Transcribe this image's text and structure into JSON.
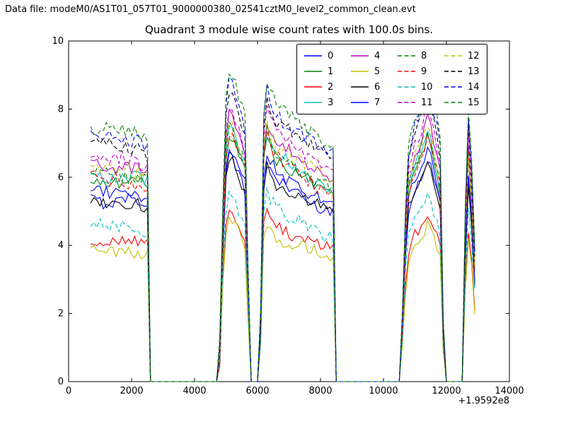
{
  "header": {
    "text": "Data file: modeM0/AS1T01_057T01_9000000380_02541cztM0_level2_common_clean.evt"
  },
  "chart_data": {
    "type": "line",
    "title": "Quadrant 3 module wise count rates with 100.0s bins.",
    "xlabel": "",
    "ylabel": "",
    "x_offset_label": "+1.9592e8",
    "xlim": [
      0,
      14000
    ],
    "ylim": [
      0,
      10
    ],
    "xticks": [
      0,
      2000,
      4000,
      6000,
      8000,
      10000,
      12000,
      14000
    ],
    "yticks": [
      0,
      2,
      4,
      6,
      8,
      10
    ],
    "bin_seconds": 100.0,
    "legend": {
      "position": "upper center",
      "columns": 4
    },
    "x_start": 700,
    "x_end": 12900,
    "x_step": 100,
    "noise_amp_solid": 0.18,
    "noise_amp_dashed": 0.22,
    "profile": {
      "x": [
        700,
        1200,
        1700,
        2200,
        2520,
        2600,
        4780,
        4860,
        5000,
        5120,
        5250,
        5450,
        5650,
        5740,
        6060,
        6130,
        6220,
        6350,
        6600,
        7000,
        7400,
        7800,
        8150,
        8400,
        8470,
        10560,
        10640,
        10800,
        11000,
        11200,
        11420,
        11600,
        11800,
        11930,
        12540,
        12600,
        12660,
        12700,
        12800,
        12900
      ],
      "factor": [
        1.0,
        0.99,
        1.0,
        0.99,
        0.96,
        0,
        0,
        0.55,
        1.12,
        1.25,
        1.2,
        1.1,
        1.02,
        0,
        0,
        0.5,
        1.25,
        1.18,
        1.1,
        1.06,
        1.02,
        0.98,
        0.95,
        0.93,
        0,
        0,
        0.55,
        0.95,
        1.05,
        1.12,
        1.22,
        1.1,
        0.95,
        0,
        0,
        0.7,
        1.15,
        1.1,
        0.85,
        0.55
      ]
    },
    "series": [
      {
        "name": "0",
        "color": "#0000ff",
        "style": "solid",
        "baseline": 5.35
      },
      {
        "name": "1",
        "color": "#008000",
        "style": "solid",
        "baseline": 5.9
      },
      {
        "name": "2",
        "color": "#ff0000",
        "style": "solid",
        "baseline": 4.15
      },
      {
        "name": "3",
        "color": "#00bfbf",
        "style": "solid",
        "baseline": 6.05
      },
      {
        "name": "4",
        "color": "#bf00bf",
        "style": "solid",
        "baseline": 6.35
      },
      {
        "name": "5",
        "color": "#bfbf00",
        "style": "solid",
        "baseline": 3.85
      },
      {
        "name": "6",
        "color": "#000000",
        "style": "solid",
        "baseline": 5.3
      },
      {
        "name": "7",
        "color": "#0000ff",
        "style": "solid",
        "baseline": 5.6
      },
      {
        "name": "8",
        "color": "#008000",
        "style": "dashed",
        "baseline": 6.1
      },
      {
        "name": "9",
        "color": "#ff0000",
        "style": "dashed",
        "baseline": 5.95
      },
      {
        "name": "10",
        "color": "#00bfbf",
        "style": "dashed",
        "baseline": 4.55
      },
      {
        "name": "11",
        "color": "#bf00bf",
        "style": "dashed",
        "baseline": 6.6
      },
      {
        "name": "12",
        "color": "#bfbf00",
        "style": "dashed",
        "baseline": 6.25
      },
      {
        "name": "13",
        "color": "#000000",
        "style": "dashed",
        "baseline": 6.95
      },
      {
        "name": "14",
        "color": "#0000ff",
        "style": "dashed",
        "baseline": 7.15
      },
      {
        "name": "15",
        "color": "#008000",
        "style": "dashed",
        "baseline": 7.4
      }
    ]
  }
}
